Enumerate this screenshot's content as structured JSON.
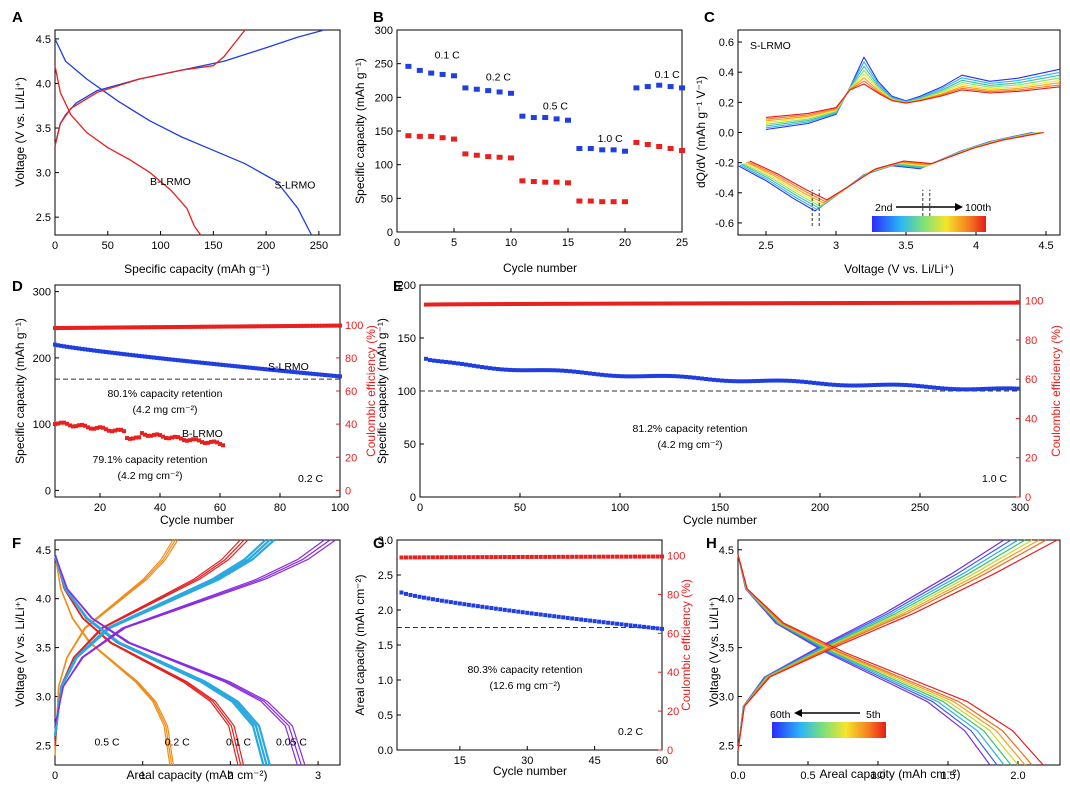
{
  "figure": {
    "panels": [
      {
        "id": "A",
        "label": "A"
      },
      {
        "id": "B",
        "label": "B"
      },
      {
        "id": "C",
        "label": "C"
      },
      {
        "id": "D",
        "label": "D"
      },
      {
        "id": "E",
        "label": "E"
      },
      {
        "id": "F",
        "label": "F"
      },
      {
        "id": "G",
        "label": "G"
      },
      {
        "id": "H",
        "label": "H"
      }
    ]
  },
  "colors": {
    "blue": "#1f3fe0",
    "red": "#e8201e",
    "dash": "#333333"
  },
  "chart_data": [
    {
      "panel": "A",
      "type": "line",
      "xlabel": "Specific capacity (mAh g⁻¹)",
      "ylabel": "Voltage (V vs. Li/Li⁺)",
      "xlim": [
        0,
        270
      ],
      "ylim": [
        2.3,
        4.6
      ],
      "xticks": [
        0,
        50,
        100,
        150,
        200,
        250
      ],
      "yticks": [
        2.5,
        3.0,
        3.5,
        4.0,
        4.5
      ],
      "series": [
        {
          "name": "S-LRMO charge",
          "color": "blue",
          "x": [
            0,
            5,
            10,
            20,
            40,
            80,
            120,
            160,
            200,
            230,
            255
          ],
          "y": [
            3.3,
            3.55,
            3.65,
            3.78,
            3.92,
            4.05,
            4.15,
            4.25,
            4.4,
            4.52,
            4.6
          ]
        },
        {
          "name": "S-LRMO discharge",
          "color": "blue",
          "x": [
            0,
            10,
            30,
            60,
            90,
            120,
            150,
            180,
            210,
            230,
            243
          ],
          "y": [
            4.5,
            4.25,
            4.05,
            3.8,
            3.58,
            3.4,
            3.25,
            3.1,
            2.9,
            2.6,
            2.3
          ]
        },
        {
          "name": "B-LRMO charge",
          "color": "red",
          "x": [
            0,
            5,
            15,
            40,
            80,
            120,
            150,
            160,
            170,
            180
          ],
          "y": [
            3.3,
            3.55,
            3.72,
            3.9,
            4.05,
            4.15,
            4.2,
            4.3,
            4.45,
            4.6
          ]
        },
        {
          "name": "B-LRMO discharge",
          "color": "red",
          "x": [
            0,
            5,
            15,
            30,
            50,
            70,
            90,
            110,
            125,
            132,
            138
          ],
          "y": [
            4.2,
            3.9,
            3.65,
            3.45,
            3.28,
            3.15,
            3.0,
            2.8,
            2.6,
            2.4,
            2.3
          ]
        }
      ],
      "annotations": [
        {
          "text": "B-LRMO",
          "x": 90,
          "y": 2.86
        },
        {
          "text": "S-LRMO",
          "x": 208,
          "y": 2.82
        }
      ]
    },
    {
      "panel": "B",
      "type": "scatter",
      "xlabel": "Cycle number",
      "ylabel": "Specific capacity (mAh g⁻¹)",
      "xlim": [
        0,
        25
      ],
      "ylim": [
        0,
        300
      ],
      "xticks": [
        0,
        5,
        10,
        15,
        20,
        25
      ],
      "yticks": [
        0,
        50,
        100,
        150,
        200,
        250,
        300
      ],
      "series": [
        {
          "name": "S-LRMO",
          "color": "blue",
          "x": [
            1,
            2,
            3,
            4,
            5,
            6,
            7,
            8,
            9,
            10,
            11,
            12,
            13,
            14,
            15,
            16,
            17,
            18,
            19,
            20,
            21,
            22,
            23,
            24,
            25
          ],
          "y": [
            246,
            240,
            236,
            234,
            232,
            214,
            212,
            210,
            208,
            206,
            172,
            170,
            170,
            168,
            166,
            124,
            124,
            122,
            122,
            120,
            214,
            216,
            218,
            216,
            214
          ]
        },
        {
          "name": "B-LRMO",
          "color": "red",
          "x": [
            1,
            2,
            3,
            4,
            5,
            6,
            7,
            8,
            9,
            10,
            11,
            12,
            13,
            14,
            15,
            16,
            17,
            18,
            19,
            20,
            21,
            22,
            23,
            24,
            25
          ],
          "y": [
            143,
            142,
            142,
            140,
            138,
            116,
            114,
            112,
            111,
            110,
            76,
            75,
            74,
            74,
            73,
            46,
            46,
            45,
            45,
            45,
            133,
            130,
            127,
            124,
            121
          ]
        }
      ],
      "annotations": [
        {
          "text": "0.1 C",
          "x": 3.3,
          "y": 258
        },
        {
          "text": "0.2 C",
          "x": 7.8,
          "y": 225
        },
        {
          "text": "0.5 C",
          "x": 12.8,
          "y": 182
        },
        {
          "text": "1.0 C",
          "x": 17.6,
          "y": 134
        },
        {
          "text": "0.1 C",
          "x": 22.6,
          "y": 229
        }
      ]
    },
    {
      "panel": "C",
      "type": "line",
      "xlabel": "Voltage (V vs. Li/Li⁺)",
      "ylabel": "dQ/dV (mAh g⁻¹ V⁻¹)",
      "xlim": [
        2.3,
        4.6
      ],
      "ylim": [
        -0.68,
        0.68
      ],
      "xticks": [
        2.5,
        3.0,
        3.5,
        4.0,
        4.5
      ],
      "yticks": [
        -0.6,
        -0.4,
        -0.2,
        0.0,
        0.2,
        0.4,
        0.6
      ],
      "title": "S-LRMO",
      "legend": {
        "start": "2nd",
        "end": "100th"
      },
      "charge": {
        "x": [
          2.5,
          2.8,
          3.0,
          3.1,
          3.2,
          3.3,
          3.4,
          3.5,
          3.6,
          3.75,
          3.9,
          4.1,
          4.3,
          4.6
        ],
        "peak_y": [
          0.02,
          0.06,
          0.12,
          0.3,
          0.5,
          0.34,
          0.24,
          0.21,
          0.24,
          0.3,
          0.38,
          0.34,
          0.36,
          0.42
        ]
      },
      "discharge": {
        "x": [
          2.3,
          2.5,
          2.7,
          2.85,
          3.0,
          3.2,
          3.4,
          3.6,
          3.7,
          3.9,
          4.1,
          4.3,
          4.4
        ],
        "y": [
          -0.22,
          -0.32,
          -0.44,
          -0.52,
          -0.42,
          -0.28,
          -0.22,
          -0.24,
          -0.2,
          -0.12,
          -0.06,
          -0.02,
          0.0
        ]
      },
      "markers": [
        2.83,
        2.88,
        3.62,
        3.67
      ]
    },
    {
      "panel": "D",
      "type": "scatter",
      "xlabel": "Cycle number",
      "ylabel": "Specific capacity (mAh g⁻¹)",
      "y2label": "Coulombic efficiency (%)",
      "xlim": [
        5,
        100
      ],
      "ylim": [
        -10,
        310
      ],
      "y2lim": [
        -4,
        124
      ],
      "xticks": [
        20,
        40,
        60,
        80,
        100
      ],
      "yticks": [
        0,
        100,
        200,
        300
      ],
      "y2ticks": [
        0,
        20,
        40,
        60,
        80,
        100
      ],
      "series": [
        {
          "name": "S-LRMO",
          "color": "blue",
          "x_start": 5,
          "x_end": 100,
          "y_start": 220,
          "y_end": 172
        },
        {
          "name": "B-LRMO",
          "color": "red",
          "x_start": 5,
          "x_end": 61,
          "y_start": 102,
          "y_end": 70
        },
        {
          "name": "CE",
          "color": "red",
          "axis": "y2",
          "x_start": 5,
          "x_end": 100,
          "y_start": 98,
          "y_end": 99.5
        }
      ],
      "retention_line": 168,
      "annotations": [
        {
          "text": "S-LRMO"
        },
        {
          "text": "80.1% capacity retention"
        },
        {
          "text": "(4.2 mg cm⁻²)"
        },
        {
          "text": "B-LRMO"
        },
        {
          "text": "79.1% capacity retention"
        },
        {
          "text": "(4.2 mg cm⁻²)"
        },
        {
          "text": "0.2 C"
        }
      ]
    },
    {
      "panel": "E",
      "type": "scatter",
      "xlabel": "Cycle number",
      "ylabel": "Specific capacity (mAh g⁻¹)",
      "y2label": "Coulombic efficiency (%)",
      "xlim": [
        0,
        300
      ],
      "ylim": [
        0,
        200
      ],
      "y2lim": [
        0,
        108
      ],
      "xticks": [
        0,
        50,
        100,
        150,
        200,
        250,
        300
      ],
      "yticks": [
        0,
        50,
        100,
        150,
        200
      ],
      "y2ticks": [
        0,
        20,
        40,
        60,
        80,
        100
      ],
      "series": [
        {
          "name": "S-LRMO",
          "color": "blue",
          "x_start": 3,
          "x_end": 300,
          "y_start": 130,
          "y_end": 101
        },
        {
          "name": "CE",
          "color": "red",
          "axis": "y2",
          "x_start": 3,
          "x_end": 300,
          "y_start": 98,
          "y_end": 99
        }
      ],
      "retention_line": 100,
      "annotations": [
        {
          "text": "81.2% capacity retention"
        },
        {
          "text": "(4.2 mg cm⁻²)"
        },
        {
          "text": "1.0 C"
        }
      ]
    },
    {
      "panel": "F",
      "type": "line",
      "xlabel": "Areal capacity (mAh cm⁻²)",
      "ylabel": "Voltage (V vs. Li/Li⁺)",
      "xlim": [
        0,
        3.25
      ],
      "ylim": [
        2.3,
        4.6
      ],
      "xticks": [
        0,
        1,
        2,
        3
      ],
      "yticks": [
        2.5,
        3.0,
        3.5,
        4.0,
        4.5
      ],
      "rates": [
        {
          "label": "0.5 C",
          "color": "#f08c1a",
          "cap": 1.35,
          "chg": 1.4
        },
        {
          "label": "0.2 C",
          "color": "#e52020",
          "cap": 2.15,
          "chg": 2.2
        },
        {
          "label": "0.1 C",
          "color": "#2aa8e0",
          "cap": 2.45,
          "chg": 2.5
        },
        {
          "label": "0.05 C",
          "color": "#8a2be2",
          "cap": 2.85,
          "chg": 3.2
        }
      ]
    },
    {
      "panel": "G",
      "type": "scatter",
      "xlabel": "Cycle number",
      "ylabel": "Areal capacity (mAh cm⁻²)",
      "y2label": "Coulombic efficiency (%)",
      "xlim": [
        1,
        60
      ],
      "ylim": [
        0,
        3.0
      ],
      "y2lim": [
        0,
        108
      ],
      "xticks": [
        15,
        30,
        45,
        60
      ],
      "yticks": [
        0.0,
        0.5,
        1.0,
        1.5,
        2.0,
        2.5,
        3.0
      ],
      "y2ticks": [
        0,
        20,
        40,
        60,
        80,
        100
      ],
      "series": [
        {
          "name": "Areal capacity",
          "color": "blue",
          "x_start": 2,
          "x_end": 60,
          "y_start": 2.25,
          "y_end": 1.73
        },
        {
          "name": "CE",
          "color": "red",
          "axis": "y2",
          "x_start": 2,
          "x_end": 60,
          "y_start": 99,
          "y_end": 99.5
        }
      ],
      "retention_line": 1.75,
      "annotations": [
        {
          "text": "80.3% capacity retention"
        },
        {
          "text": "(12.6 mg cm⁻²)"
        },
        {
          "text": "0.2 C"
        }
      ]
    },
    {
      "panel": "H",
      "type": "line",
      "xlabel": "Areal  capacity (mAh cm⁻²)",
      "ylabel": "Voltage (V vs. Li/Li⁺)",
      "xlim": [
        0,
        2.3
      ],
      "ylim": [
        2.3,
        4.6
      ],
      "xticks": [
        0.0,
        0.5,
        1.0,
        1.5,
        2.0
      ],
      "yticks": [
        2.5,
        3.0,
        3.5,
        4.0,
        4.5
      ],
      "legend": {
        "start": "60th",
        "end": "5th"
      },
      "curves": [
        {
          "color": "#7a2be0",
          "cap": 1.8
        },
        {
          "color": "#3d5cf0",
          "cap": 1.85
        },
        {
          "color": "#2ab0e0",
          "cap": 1.9
        },
        {
          "color": "#3ac070",
          "cap": 1.95
        },
        {
          "color": "#c8d820",
          "cap": 2.0
        },
        {
          "color": "#f0a020",
          "cap": 2.05
        },
        {
          "color": "#f06a1a",
          "cap": 2.1
        },
        {
          "color": "#e52020",
          "cap": 2.18
        }
      ]
    }
  ]
}
